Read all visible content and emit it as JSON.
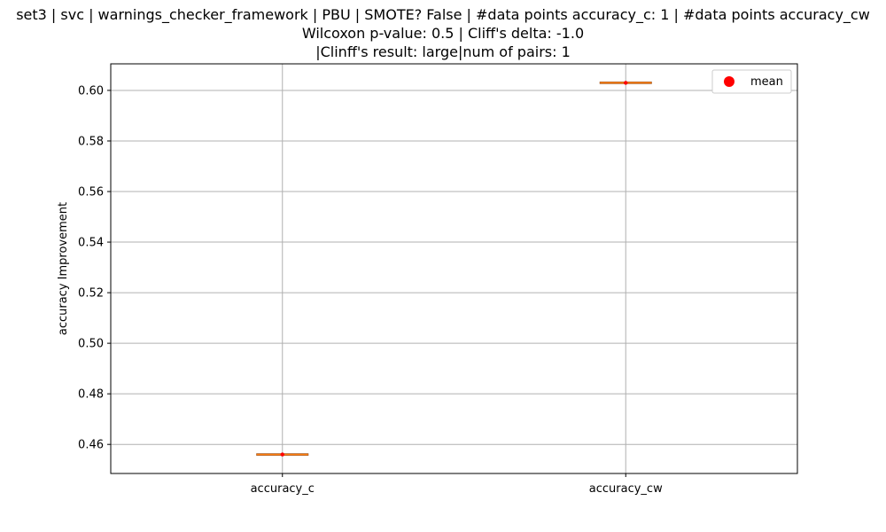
{
  "chart_data": {
    "type": "box",
    "title_lines": [
      "set3 | svc | warnings_checker_framework | PBU | SMOTE? False | #data points accuracy_c: 1 | #data points accuracy_cw",
      "Wilcoxon p-value: 0.5 | Cliff's delta: -1.0",
      "|Clinff's result: large|num of pairs: 1"
    ],
    "ylabel": "accuracy Improvement",
    "ylim": [
      0.4485,
      0.6105
    ],
    "yticks": [
      0.46,
      0.48,
      0.5,
      0.52,
      0.54,
      0.56,
      0.58,
      0.6
    ],
    "ytick_labels": [
      "0.46",
      "0.48",
      "0.50",
      "0.52",
      "0.54",
      "0.56",
      "0.58",
      "0.60"
    ],
    "categories": [
      "accuracy_c",
      "accuracy_cw"
    ],
    "values": [
      0.456,
      0.603
    ],
    "means": [
      0.456,
      0.603
    ],
    "grid": true,
    "legend": {
      "placement": "upper-right",
      "entries": [
        {
          "label": "mean"
        }
      ]
    },
    "colors": {
      "box": "#8B4513",
      "median": "#ff7f0e",
      "mean": "#ff0000",
      "grid": "#b0b0b0"
    }
  }
}
